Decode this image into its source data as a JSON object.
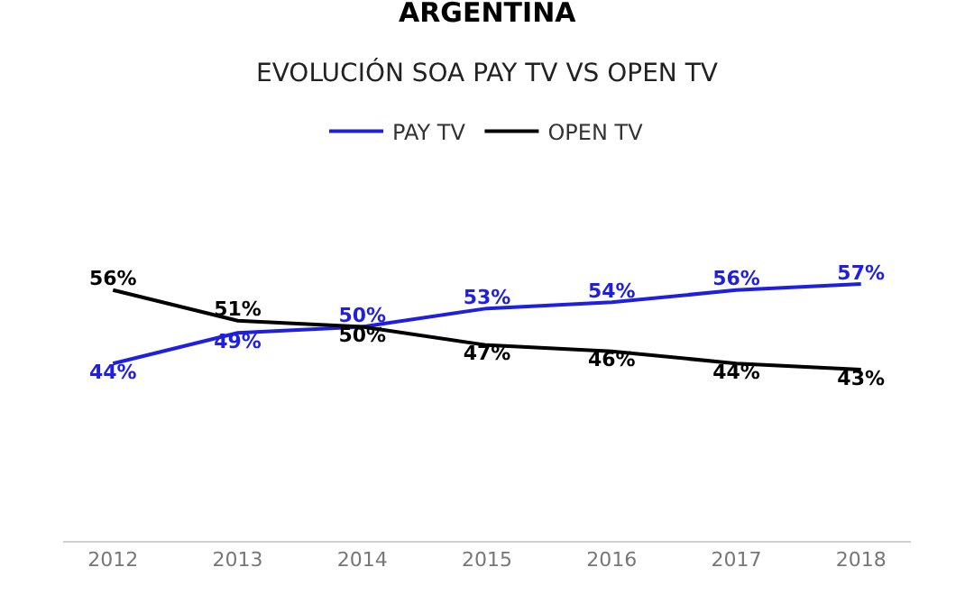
{
  "chart_data": {
    "type": "line",
    "title": "ARGENTINA",
    "subtitle": "EVOLUCIÓN SOA PAY TV VS OPEN TV",
    "categories": [
      "2012",
      "2013",
      "2014",
      "2015",
      "2016",
      "2017",
      "2018"
    ],
    "series": [
      {
        "name": "PAY TV",
        "color": "#1f1fe0",
        "values": [
          44,
          49,
          50,
          53,
          54,
          56,
          57
        ],
        "value_labels": [
          "44%",
          "49%",
          "50%",
          "53%",
          "54%",
          "56%",
          "57%"
        ]
      },
      {
        "name": "OPEN TV",
        "color": "#000000",
        "values": [
          56,
          51,
          50,
          47,
          46,
          44,
          43
        ],
        "value_labels": [
          "56%",
          "51%",
          "50%",
          "47%",
          "46%",
          "44%",
          "43%"
        ]
      }
    ],
    "legend": "top",
    "grid": false,
    "marker": "none",
    "line_style": "solid"
  }
}
